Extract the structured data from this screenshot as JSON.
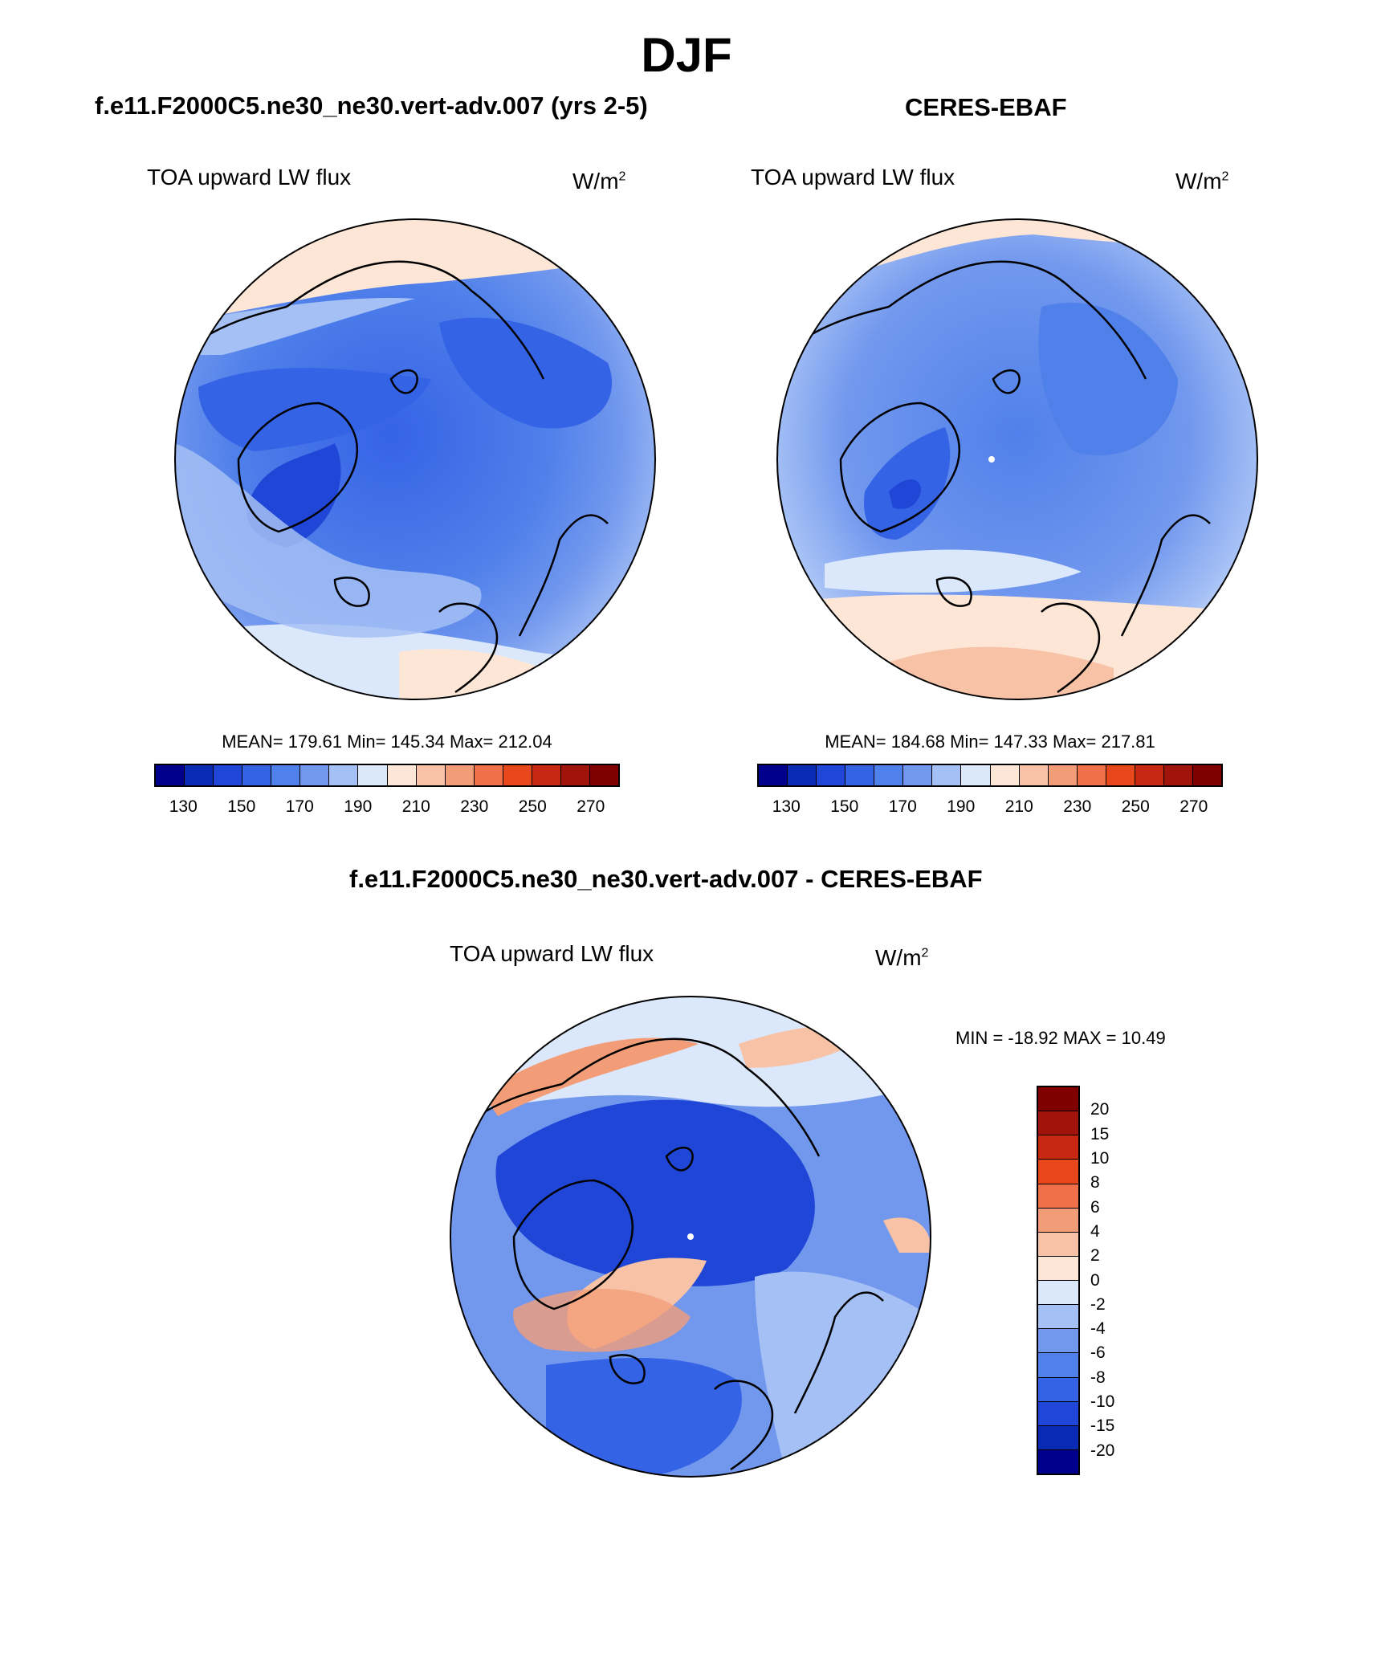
{
  "title": "DJF",
  "panels": [
    {
      "subtitle": "f.e11.F2000C5.ne30_ne30.vert-adv.007 (yrs 2-5)",
      "variable": "TOA upward LW flux",
      "units_base": "W/m",
      "units_exp": "2",
      "stats": "MEAN= 179.61  Min= 145.34  Max= 212.04",
      "colorbar_ticks": [
        "130",
        "150",
        "170",
        "190",
        "210",
        "230",
        "250",
        "270"
      ]
    },
    {
      "subtitle": "CERES-EBAF",
      "variable": "TOA upward LW flux",
      "units_base": "W/m",
      "units_exp": "2",
      "stats": "MEAN= 184.68  Min= 147.33  Max= 217.81",
      "colorbar_ticks": [
        "130",
        "150",
        "170",
        "190",
        "210",
        "230",
        "250",
        "270"
      ]
    }
  ],
  "diff_panel": {
    "subtitle": "f.e11.F2000C5.ne30_ne30.vert-adv.007 - CERES-EBAF",
    "variable": "TOA upward LW flux",
    "units_base": "W/m",
    "units_exp": "2",
    "stats": "MIN = -18.92 MAX =  10.49",
    "colorbar_ticks": [
      "20",
      "15",
      "10",
      "8",
      "6",
      "4",
      "2",
      "0",
      "-2",
      "-4",
      "-6",
      "-8",
      "-10",
      "-15",
      "-20"
    ]
  },
  "colors": {
    "abs_scale": [
      "#00008c",
      "#0a2ab4",
      "#1f46d6",
      "#3563e6",
      "#5080ea",
      "#7298ee",
      "#a5c0f5",
      "#dbe8fb",
      "#fde6d6",
      "#f7c2a5",
      "#f39d78",
      "#f0704a",
      "#e8471c",
      "#c82812",
      "#a0140c",
      "#800000"
    ],
    "diff_scale": [
      "#800000",
      "#a0140c",
      "#c82812",
      "#e8471c",
      "#f0704a",
      "#f39d78",
      "#f7c2a5",
      "#fde6d6",
      "#dbe8fb",
      "#a5c0f5",
      "#7298ee",
      "#5080ea",
      "#3563e6",
      "#1f46d6",
      "#0a2ab4",
      "#00008c"
    ],
    "pole_marker": "#ffffff",
    "coastline": "#000000"
  },
  "chart_data": [
    {
      "type": "heatmap",
      "projection": "north polar stereographic",
      "title": "f.e11.F2000C5.ne30_ne30.vert-adv.007 (yrs 2-5)",
      "variable": "TOA upward LW flux",
      "units": "W/m2",
      "season": "DJF",
      "mean": 179.61,
      "min": 145.34,
      "max": 212.04,
      "contour_levels": [
        130,
        140,
        150,
        160,
        170,
        180,
        190,
        200,
        210,
        220,
        230,
        240,
        250,
        260,
        270
      ]
    },
    {
      "type": "heatmap",
      "projection": "north polar stereographic",
      "title": "CERES-EBAF",
      "variable": "TOA upward LW flux",
      "units": "W/m2",
      "season": "DJF",
      "mean": 184.68,
      "min": 147.33,
      "max": 217.81,
      "contour_levels": [
        130,
        140,
        150,
        160,
        170,
        180,
        190,
        200,
        210,
        220,
        230,
        240,
        250,
        260,
        270
      ]
    },
    {
      "type": "heatmap",
      "projection": "north polar stereographic",
      "title": "f.e11.F2000C5.ne30_ne30.vert-adv.007 - CERES-EBAF",
      "variable": "TOA upward LW flux",
      "units": "W/m2",
      "season": "DJF",
      "min": -18.92,
      "max": 10.49,
      "contour_levels": [
        -20,
        -15,
        -10,
        -8,
        -6,
        -4,
        -2,
        0,
        2,
        4,
        6,
        8,
        10,
        15,
        20
      ]
    }
  ]
}
